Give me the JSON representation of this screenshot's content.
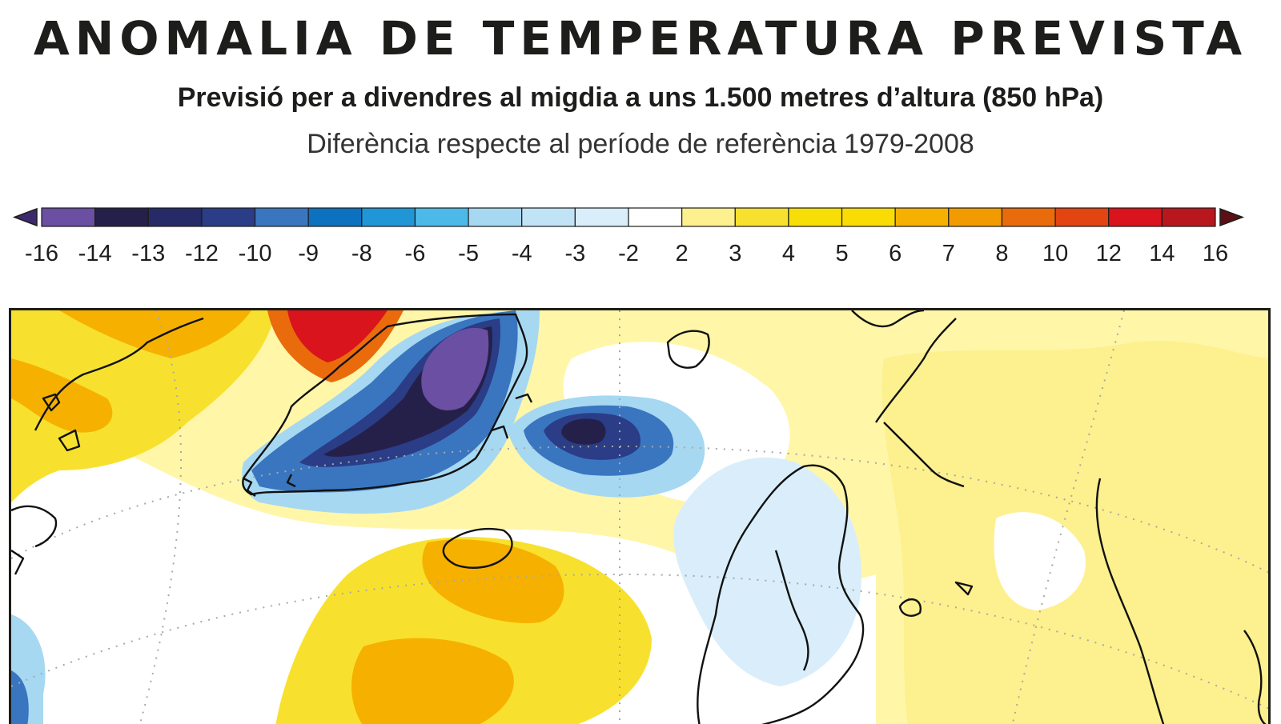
{
  "title": "ANOMALIA DE TEMPERATURA PREVISTA",
  "subtitle": "Previsió per a divendres al migdia a uns 1.500 metres d’altura (850 hPa)",
  "note": "Diferència respecte al període de referència 1979-2008",
  "legend": {
    "under_color": "#3d2a6e",
    "over_color": "#5a1014",
    "labels": [
      "-16",
      "-14",
      "-13",
      "-12",
      "-10",
      "-9",
      "-8",
      "-6",
      "-5",
      "-4",
      "-3",
      "-2",
      "2",
      "3",
      "4",
      "5",
      "6",
      "7",
      "8",
      "10",
      "12",
      "14",
      "16"
    ],
    "colors": [
      "#6a4fa3",
      "#25204a",
      "#262a67",
      "#2a3d86",
      "#3a76bf",
      "#0c72bf",
      "#2196d6",
      "#4cb9e8",
      "#a6d8f2",
      "#c1e3f6",
      "#d9eefa",
      "#ffffff",
      "#fdf08e",
      "#f8e12e",
      "#f7de06",
      "#f8dc04",
      "#f6b100",
      "#f29b00",
      "#ea6b0c",
      "#e24412",
      "#d9141c",
      "#b8171d"
    ]
  },
  "map": {
    "ocean_color": "#ffffff",
    "colors": {
      "deep_purple": "#6a4fa3",
      "navy": "#25204a",
      "dark_blue": "#2a3d86",
      "blue": "#3a76bf",
      "light_blue": "#a6d8f2",
      "pale_blue": "#d9eefa",
      "pale_yellow": "#fdf08e",
      "yellow": "#f8e12e",
      "orange": "#f6b100",
      "dark_orange": "#ea6b0c",
      "red": "#d9141c"
    }
  }
}
